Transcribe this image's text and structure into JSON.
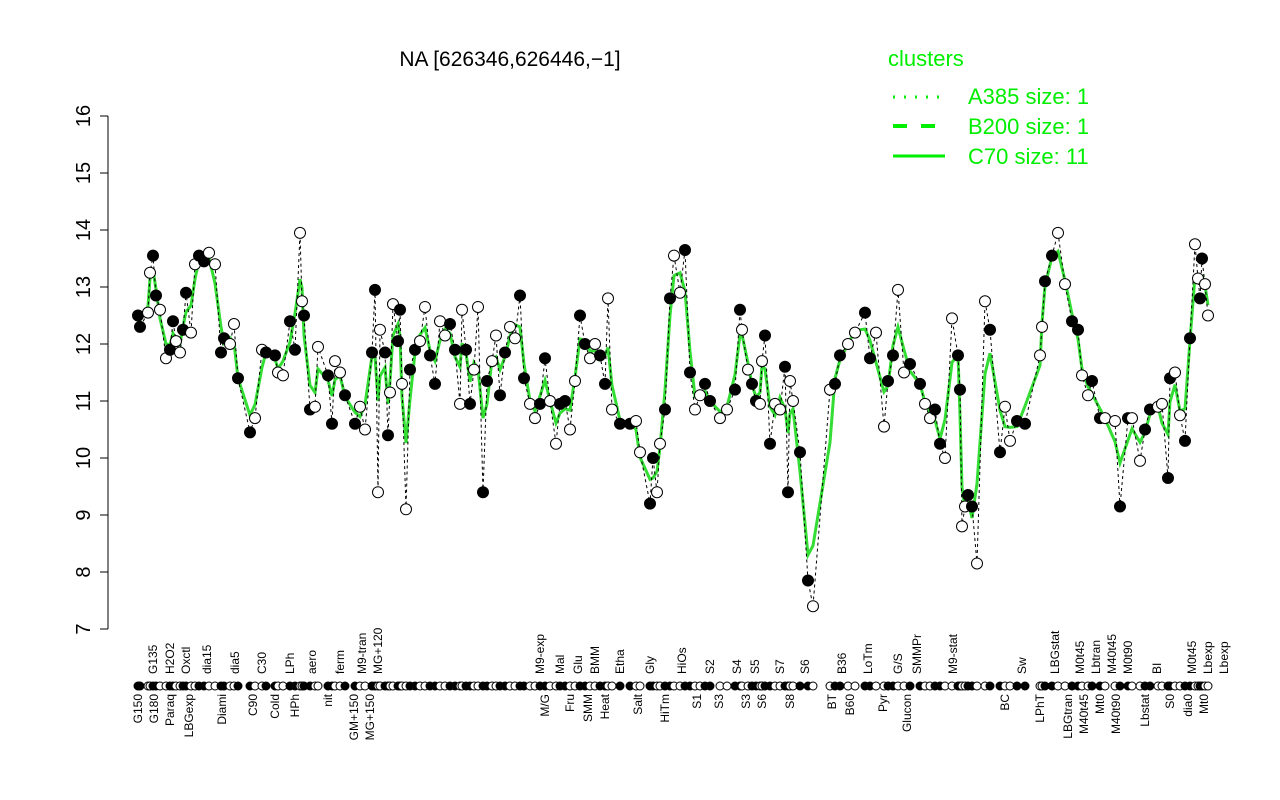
{
  "chart_data": {
    "type": "line",
    "title": "NA [626346,626446,−1]",
    "xlabel": "",
    "ylabel": "",
    "ylim": [
      7,
      16
    ],
    "xlim": [
      0,
      108
    ],
    "yticks": [
      "7",
      "8",
      "9",
      "10",
      "11",
      "12",
      "13",
      "14",
      "15",
      "16"
    ],
    "legend": {
      "title": "clusters",
      "placement": "top-right",
      "entries": [
        {
          "label": "A385 size: 1",
          "style": "dotted"
        },
        {
          "label": "B200 size: 1",
          "style": "dashed"
        },
        {
          "label": "C70 size: 11",
          "style": "solid"
        }
      ]
    },
    "colors": {
      "line": "#33dd33",
      "legend": "#00ee00",
      "points": "#000000"
    },
    "points": [
      [
        0.8,
        12.5
      ],
      [
        1,
        12.3
      ],
      [
        1.8,
        12.55
      ],
      [
        2,
        13.25
      ],
      [
        2.3,
        13.55
      ],
      [
        2.6,
        12.85
      ],
      [
        3,
        12.6
      ],
      [
        3.6,
        11.75
      ],
      [
        4,
        11.9
      ],
      [
        4.3,
        12.4
      ],
      [
        4.6,
        12.05
      ],
      [
        5,
        11.85
      ],
      [
        5.3,
        12.25
      ],
      [
        5.6,
        12.9
      ],
      [
        6.1,
        12.2
      ],
      [
        6.5,
        13.4
      ],
      [
        6.9,
        13.55
      ],
      [
        7.4,
        13.45
      ],
      [
        7.9,
        13.6
      ],
      [
        8.5,
        13.4
      ],
      [
        9.1,
        11.85
      ],
      [
        9.4,
        12.1
      ],
      [
        10,
        12
      ],
      [
        10.4,
        12.35
      ],
      [
        10.8,
        11.4
      ],
      [
        12,
        10.45
      ],
      [
        12.5,
        10.7
      ],
      [
        13.2,
        11.9
      ],
      [
        13.6,
        11.85
      ],
      [
        14.5,
        11.8
      ],
      [
        14.8,
        11.5
      ],
      [
        15.3,
        11.45
      ],
      [
        16,
        12.4
      ],
      [
        16.5,
        11.9
      ],
      [
        17,
        13.95
      ],
      [
        17.2,
        12.75
      ],
      [
        17.4,
        12.5
      ],
      [
        18,
        10.85
      ],
      [
        18.5,
        10.9
      ],
      [
        18.8,
        11.95
      ],
      [
        19.8,
        11.45
      ],
      [
        20.2,
        10.6
      ],
      [
        20.5,
        11.7
      ],
      [
        21,
        11.5
      ],
      [
        21.5,
        11.1
      ],
      [
        22.5,
        10.6
      ],
      [
        23,
        10.9
      ],
      [
        23.5,
        10.5
      ],
      [
        24.2,
        11.85
      ],
      [
        24.5,
        12.95
      ],
      [
        24.8,
        9.4
      ],
      [
        25,
        12.25
      ],
      [
        25.5,
        11.85
      ],
      [
        25.8,
        10.4
      ],
      [
        26,
        11.15
      ],
      [
        26.3,
        12.7
      ],
      [
        26.8,
        12.05
      ],
      [
        27,
        12.6
      ],
      [
        27.2,
        11.3
      ],
      [
        27.6,
        9.1
      ],
      [
        28,
        11.55
      ],
      [
        28.5,
        11.9
      ],
      [
        29,
        12.05
      ],
      [
        29.5,
        12.65
      ],
      [
        30,
        11.8
      ],
      [
        30.5,
        11.3
      ],
      [
        31,
        12.4
      ],
      [
        31.5,
        12.15
      ],
      [
        32,
        12.35
      ],
      [
        32.5,
        11.9
      ],
      [
        33,
        10.95
      ],
      [
        33.2,
        12.6
      ],
      [
        33.6,
        11.9
      ],
      [
        34,
        10.95
      ],
      [
        34.4,
        11.55
      ],
      [
        34.8,
        12.65
      ],
      [
        35.3,
        9.4
      ],
      [
        35.7,
        11.35
      ],
      [
        36.2,
        11.7
      ],
      [
        36.6,
        12.15
      ],
      [
        37,
        11.1
      ],
      [
        37.5,
        11.85
      ],
      [
        38,
        12.3
      ],
      [
        38.5,
        12.1
      ],
      [
        39,
        12.85
      ],
      [
        39.4,
        11.4
      ],
      [
        40,
        10.95
      ],
      [
        40.5,
        10.7
      ],
      [
        41,
        10.95
      ],
      [
        41.5,
        11.75
      ],
      [
        42,
        11
      ],
      [
        42.6,
        10.25
      ],
      [
        43,
        10.95
      ],
      [
        43.5,
        11
      ],
      [
        44,
        10.5
      ],
      [
        44.5,
        11.35
      ],
      [
        45,
        12.5
      ],
      [
        45.5,
        12
      ],
      [
        46,
        11.75
      ],
      [
        46.5,
        12
      ],
      [
        47,
        11.8
      ],
      [
        47.5,
        11.3
      ],
      [
        47.8,
        12.8
      ],
      [
        48.2,
        10.85
      ],
      [
        49,
        10.6
      ],
      [
        50,
        10.6
      ],
      [
        50.6,
        10.65
      ],
      [
        51,
        10.1
      ],
      [
        52,
        9.2
      ],
      [
        52.3,
        10
      ],
      [
        52.7,
        9.4
      ],
      [
        53,
        10.25
      ],
      [
        53.5,
        10.85
      ],
      [
        54,
        12.8
      ],
      [
        54.4,
        13.55
      ],
      [
        55,
        12.9
      ],
      [
        55.5,
        13.65
      ],
      [
        56,
        11.5
      ],
      [
        56.5,
        10.85
      ],
      [
        57,
        11.1
      ],
      [
        57.5,
        11.3
      ],
      [
        58,
        11
      ],
      [
        59,
        10.7
      ],
      [
        59.7,
        10.85
      ],
      [
        60.5,
        11.2
      ],
      [
        61,
        12.6
      ],
      [
        61.2,
        12.25
      ],
      [
        61.8,
        11.55
      ],
      [
        62.2,
        11.3
      ],
      [
        62.6,
        11
      ],
      [
        63,
        10.95
      ],
      [
        63.2,
        11.7
      ],
      [
        63.5,
        12.15
      ],
      [
        64,
        10.25
      ],
      [
        64.5,
        10.95
      ],
      [
        65,
        10.85
      ],
      [
        65.5,
        11.6
      ],
      [
        65.8,
        9.4
      ],
      [
        66,
        11.35
      ],
      [
        66.3,
        11
      ],
      [
        67,
        10.1
      ],
      [
        67.8,
        7.85
      ],
      [
        68.3,
        7.4
      ],
      [
        70,
        11.2
      ],
      [
        70.5,
        11.3
      ],
      [
        71,
        11.8
      ],
      [
        71.8,
        12
      ],
      [
        72.5,
        12.2
      ],
      [
        73.5,
        12.55
      ],
      [
        74,
        11.75
      ],
      [
        74.6,
        12.2
      ],
      [
        75.4,
        10.55
      ],
      [
        75.8,
        11.35
      ],
      [
        76.3,
        11.8
      ],
      [
        76.8,
        12.95
      ],
      [
        77.4,
        11.5
      ],
      [
        78,
        11.65
      ],
      [
        79,
        11.3
      ],
      [
        79.5,
        10.95
      ],
      [
        80,
        10.7
      ],
      [
        80.5,
        10.85
      ],
      [
        81,
        10.25
      ],
      [
        81.5,
        10
      ],
      [
        82.2,
        12.45
      ],
      [
        82.8,
        11.8
      ],
      [
        83,
        11.2
      ],
      [
        83.2,
        8.8
      ],
      [
        83.5,
        9.15
      ],
      [
        83.8,
        9.35
      ],
      [
        84.2,
        9.15
      ],
      [
        84.7,
        8.15
      ],
      [
        85.5,
        12.75
      ],
      [
        86,
        12.25
      ],
      [
        87,
        10.1
      ],
      [
        87.5,
        10.9
      ],
      [
        88,
        10.3
      ],
      [
        88.7,
        10.65
      ],
      [
        89.5,
        10.6
      ],
      [
        91,
        11.8
      ],
      [
        91.2,
        12.3
      ],
      [
        91.5,
        13.1
      ],
      [
        92.2,
        13.55
      ],
      [
        92.8,
        13.95
      ],
      [
        93.5,
        13.05
      ],
      [
        94.2,
        12.4
      ],
      [
        94.8,
        12.25
      ],
      [
        95.2,
        11.45
      ],
      [
        95.8,
        11.1
      ],
      [
        96.2,
        11.35
      ],
      [
        97,
        10.7
      ],
      [
        97.5,
        10.7
      ],
      [
        98.5,
        10.65
      ],
      [
        99,
        9.15
      ],
      [
        99.8,
        10.7
      ],
      [
        100.2,
        10.7
      ],
      [
        101,
        9.95
      ],
      [
        101.5,
        10.5
      ],
      [
        102,
        10.85
      ],
      [
        102.8,
        10.9
      ],
      [
        103.2,
        10.95
      ],
      [
        103.8,
        9.65
      ],
      [
        104,
        11.4
      ],
      [
        104.5,
        11.5
      ],
      [
        105,
        10.75
      ],
      [
        105.5,
        10.3
      ],
      [
        106,
        12.1
      ],
      [
        106.5,
        13.75
      ],
      [
        106.8,
        13.15
      ],
      [
        107,
        12.8
      ],
      [
        107.2,
        13.5
      ],
      [
        107.5,
        13.05
      ],
      [
        107.8,
        12.5
      ]
    ],
    "xtick_labels_upper": [
      [
        "G135",
        2.3
      ],
      [
        "H2O2",
        4
      ],
      [
        "Oxctl",
        5.6
      ],
      [
        "dia15",
        7.7
      ],
      [
        "dia5",
        10.5
      ],
      [
        "C30",
        13.2
      ],
      [
        "LPh",
        16
      ],
      [
        "aero",
        18.2
      ],
      [
        "ferm",
        21
      ],
      [
        "M9-tran",
        23.2
      ],
      [
        "MG+120",
        24.5
      ],
      [
        "M9-exp",
        41
      ],
      [
        "Mal",
        43
      ],
      [
        "Glu",
        44.8
      ],
      [
        "BMM",
        46.5
      ],
      [
        "Etha",
        49
      ],
      [
        "Gly",
        52
      ],
      [
        "HiOs",
        55.2
      ],
      [
        "S2",
        58
      ],
      [
        "S4",
        60.7
      ],
      [
        "S5",
        62.5
      ],
      [
        "S7",
        65
      ],
      [
        "S6",
        67.5
      ],
      [
        "B36",
        71.2
      ],
      [
        "LoTm",
        73.8
      ],
      [
        "G/S",
        76.8
      ],
      [
        "SMMPr",
        78.7
      ],
      [
        "M9-stat",
        82.3
      ],
      [
        "Sw",
        89.2
      ],
      [
        "LBGstat",
        92.5
      ],
      [
        "M0t45",
        95
      ],
      [
        "Lbtran",
        96
      ],
      [
        "M40t45",
        96.8
      ],
      [
        "M0t90",
        99.5
      ],
      [
        "BI",
        102.7
      ],
      [
        "M0t45",
        106.2
      ],
      [
        "Lbexp",
        106.8
      ],
      [
        "Lbexp",
        107.5
      ]
    ],
    "xtick_labels_lower": [
      [
        "G150",
        0.8
      ],
      [
        "G180",
        2.3
      ],
      [
        "Paraq",
        4
      ],
      [
        "LBGexp",
        5.9
      ],
      [
        "Diami",
        9.2
      ],
      [
        "C90",
        12.3
      ],
      [
        "Cold",
        14.5
      ],
      [
        "HPh",
        16.5
      ],
      [
        "nit",
        19.8
      ],
      [
        "GM+150",
        22.4
      ],
      [
        "MG+150",
        24
      ],
      [
        "M/G",
        41.5
      ],
      [
        "Fru",
        44
      ],
      [
        "SMM",
        45.8
      ],
      [
        "Heat",
        47.5
      ],
      [
        "Salt",
        50.8
      ],
      [
        "HiTm",
        53.5
      ],
      [
        "S1",
        56.7
      ],
      [
        "S3",
        58.9
      ],
      [
        "S3",
        61.6
      ],
      [
        "S6",
        63.2
      ],
      [
        "S8",
        66
      ],
      [
        "BT",
        70.2
      ],
      [
        "B60",
        72
      ],
      [
        "Pyr",
        75.3
      ],
      [
        "Glucon",
        77.7
      ],
      [
        "BC",
        87.5
      ],
      [
        "LPhT",
        91
      ],
      [
        "LBGtran",
        93.8
      ],
      [
        "M40t45",
        94.8
      ],
      [
        "Mt0",
        97
      ],
      [
        "M40t90",
        98
      ],
      [
        "Lbstat",
        101.5
      ],
      [
        "S0",
        104
      ],
      [
        "dia0",
        105.8
      ],
      [
        "Mt0",
        106.8
      ]
    ]
  }
}
